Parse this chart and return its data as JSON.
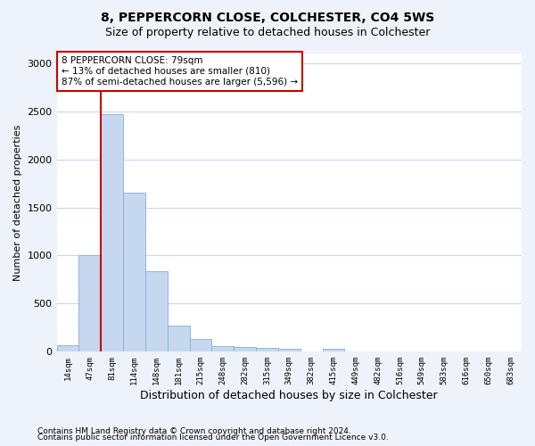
{
  "title1": "8, PEPPERCORN CLOSE, COLCHESTER, CO4 5WS",
  "title2": "Size of property relative to detached houses in Colchester",
  "xlabel": "Distribution of detached houses by size in Colchester",
  "ylabel": "Number of detached properties",
  "categories": [
    "14sqm",
    "47sqm",
    "81sqm",
    "114sqm",
    "148sqm",
    "181sqm",
    "215sqm",
    "248sqm",
    "282sqm",
    "315sqm",
    "349sqm",
    "382sqm",
    "415sqm",
    "449sqm",
    "482sqm",
    "516sqm",
    "549sqm",
    "583sqm",
    "616sqm",
    "650sqm",
    "683sqm"
  ],
  "values": [
    65,
    1000,
    2470,
    1650,
    840,
    275,
    130,
    55,
    45,
    40,
    30,
    0,
    28,
    0,
    0,
    0,
    0,
    0,
    0,
    0,
    0
  ],
  "bar_color": "#c5d8f0",
  "bar_edge_color": "#89aed0",
  "ylim": [
    0,
    3100
  ],
  "yticks": [
    0,
    500,
    1000,
    1500,
    2000,
    2500,
    3000
  ],
  "annotation_text": "8 PEPPERCORN CLOSE: 79sqm\n← 13% of detached houses are smaller (810)\n87% of semi-detached houses are larger (5,596) →",
  "annotation_box_color": "#ffffff",
  "annotation_border_color": "#cc0000",
  "vline_color": "#cc0000",
  "footer1": "Contains HM Land Registry data © Crown copyright and database right 2024.",
  "footer2": "Contains public sector information licensed under the Open Government Licence v3.0.",
  "bg_color": "#eef2fa",
  "plot_bg_color": "#ffffff",
  "grid_color": "#c8d8ec",
  "title1_fontsize": 10,
  "title2_fontsize": 9,
  "xlabel_fontsize": 9,
  "ylabel_fontsize": 8,
  "tick_fontsize": 8,
  "annot_fontsize": 7.5,
  "footer_fontsize": 6.5
}
